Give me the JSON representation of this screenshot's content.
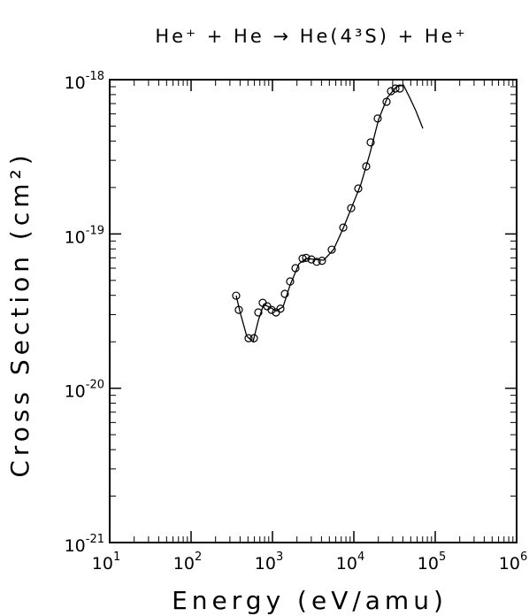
{
  "chart_data": {
    "type": "scatter",
    "title": "He⁺ + He → He(4³S) + He⁺",
    "x_label": "Energy (eV/amu)",
    "y_label": "Cross Section (cm²)",
    "xscale": "log",
    "yscale": "log",
    "xlim": [
      10,
      1000000
    ],
    "ylim": [
      1e-21,
      1e-18
    ],
    "xticks": [
      {
        "value": 10,
        "label": "10",
        "exponent": "1"
      },
      {
        "value": 100,
        "label": "10",
        "exponent": "2"
      },
      {
        "value": 1000,
        "label": "10",
        "exponent": "3"
      },
      {
        "value": 10000,
        "label": "10",
        "exponent": "4"
      },
      {
        "value": 100000,
        "label": "10",
        "exponent": "5"
      },
      {
        "value": 1000000,
        "label": "10",
        "exponent": "6"
      }
    ],
    "yticks": [
      {
        "value": 1e-21,
        "label": "10",
        "exponent": "-21"
      },
      {
        "value": 1e-20,
        "label": "10",
        "exponent": "-20"
      },
      {
        "value": 1e-19,
        "label": "10",
        "exponent": "-19"
      },
      {
        "value": 1e-18,
        "label": "10",
        "exponent": "-18"
      }
    ],
    "series": [
      {
        "style": "line",
        "color": "#000000",
        "x": [
          358,
          406,
          484,
          577,
          670,
          778,
          951,
          1105,
          1349,
          1649,
          2118,
          2590,
          3327,
          4266,
          5623,
          7413,
          9506,
          12210,
          15700,
          20140,
          25880,
          33270,
          40640,
          48420,
          57680,
          70470
        ],
        "values": [
          3.98e-20,
          3.02e-20,
          2.17e-20,
          2e-20,
          2.75e-20,
          3.49e-20,
          3.33e-20,
          3.17e-20,
          3.37e-20,
          4.67e-20,
          6.41e-20,
          6.93e-20,
          6.84e-20,
          6.76e-20,
          7.91e-20,
          1.09e-19,
          1.51e-19,
          2.1e-19,
          3.3e-19,
          5.52e-19,
          7.67e-19,
          8.99e-19,
          9.24e-19,
          7.67e-19,
          6.3e-19,
          4.83e-19
        ]
      },
      {
        "style": "markers",
        "color": "#000000",
        "x": [
          358,
          386,
          509,
          592,
          670,
          759,
          861,
          975,
          1105,
          1253,
          1420,
          1649,
          1917,
          2344,
          2590,
          3009,
          3496,
          4060,
          5350,
          7413,
          9270,
          11330,
          14190,
          16100,
          19650,
          25230,
          28620,
          32450,
          36760
        ],
        "values": [
          3.98e-20,
          3.22e-20,
          2.11e-20,
          2.11e-20,
          3.1e-20,
          3.58e-20,
          3.4e-20,
          3.22e-20,
          3.1e-20,
          3.28e-20,
          4.09e-20,
          4.92e-20,
          6e-20,
          6.93e-20,
          7e-20,
          6.84e-20,
          6.6e-20,
          6.7e-20,
          7.91e-20,
          1.1e-19,
          1.47e-19,
          1.97e-19,
          2.74e-19,
          3.92e-19,
          5.6e-19,
          7.19e-19,
          8.42e-19,
          8.76e-19,
          8.76e-19
        ]
      }
    ]
  }
}
